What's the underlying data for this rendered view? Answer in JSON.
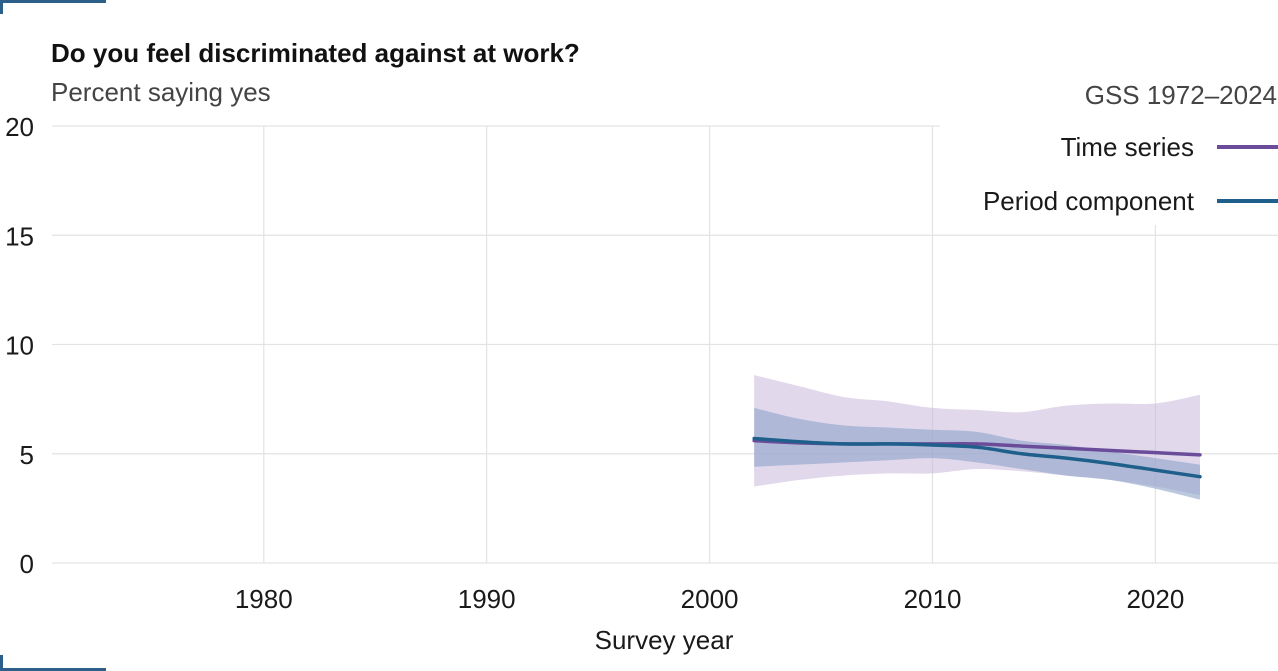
{
  "chart_data": {
    "type": "line",
    "title": "Do you feel discriminated against at work?",
    "subtitle": "Percent saying yes",
    "xlabel": "Survey year",
    "ylabel": "",
    "xlim": [
      1970.5,
      2025.5
    ],
    "ylim": [
      0,
      20
    ],
    "x_ticks": [
      1980,
      1990,
      2000,
      2010,
      2020
    ],
    "y_ticks": [
      0,
      5,
      10,
      15,
      20
    ],
    "grid": true,
    "legend": {
      "title": "GSS 1972–2024",
      "position": "top-right",
      "entries": [
        "Time series",
        "Period component"
      ]
    },
    "series": [
      {
        "name": "Time series",
        "color": "#6b4c9a",
        "band_color": "#c9b8dd",
        "x": [
          2002,
          2004,
          2006,
          2008,
          2010,
          2012,
          2014,
          2016,
          2018,
          2020,
          2022
        ],
        "y": [
          5.6,
          5.5,
          5.45,
          5.45,
          5.45,
          5.45,
          5.35,
          5.25,
          5.15,
          5.05,
          4.95
        ],
        "lower": [
          3.5,
          3.8,
          4.0,
          4.1,
          4.1,
          4.3,
          4.2,
          4.0,
          3.8,
          3.5,
          3.1
        ],
        "upper": [
          8.6,
          8.1,
          7.6,
          7.4,
          7.1,
          7.0,
          6.9,
          7.2,
          7.3,
          7.3,
          7.7
        ]
      },
      {
        "name": "Period component",
        "color": "#1f5f8b",
        "band_color": "#8da5c9",
        "x": [
          2002,
          2004,
          2006,
          2008,
          2010,
          2012,
          2014,
          2016,
          2018,
          2020,
          2022
        ],
        "y": [
          5.7,
          5.55,
          5.45,
          5.45,
          5.4,
          5.3,
          5.0,
          4.8,
          4.55,
          4.25,
          3.95
        ],
        "lower": [
          4.4,
          4.5,
          4.6,
          4.7,
          4.8,
          4.6,
          4.3,
          4.0,
          3.8,
          3.4,
          2.9
        ],
        "upper": [
          7.1,
          6.6,
          6.3,
          6.2,
          6.1,
          6.0,
          5.6,
          5.4,
          5.1,
          4.8,
          4.5
        ]
      }
    ]
  }
}
